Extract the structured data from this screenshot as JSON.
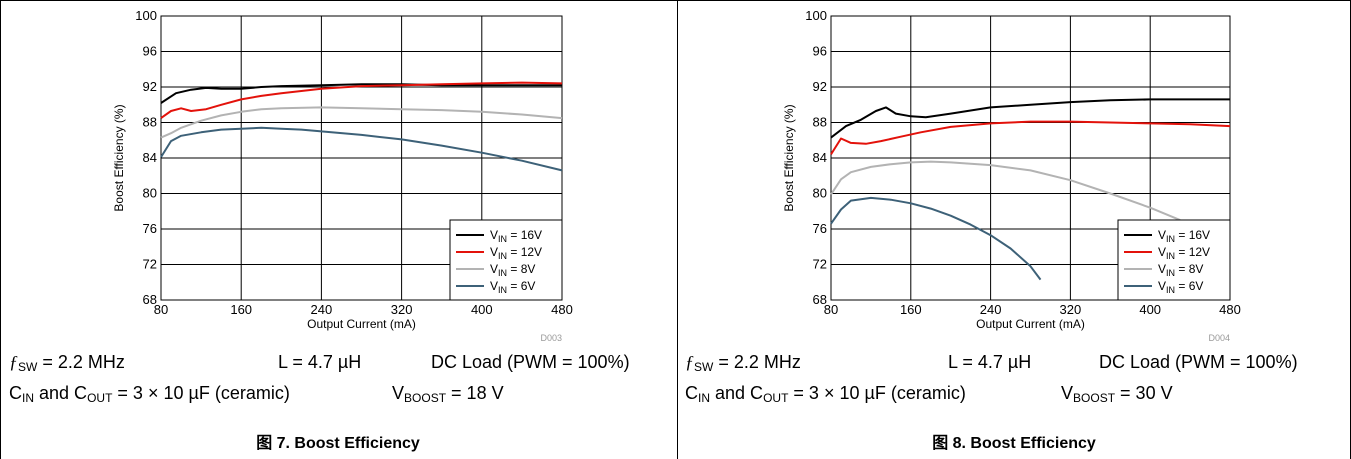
{
  "panels": [
    {
      "caption": "图 7. Boost Efficiency",
      "fsw_label": "= 2.2 MHz",
      "inductor": "L = 4.7 µH",
      "load": "DC Load (PWM = 100%)",
      "caps": "and C",
      "caps_tail": "= 3 × 10 µF (ceramic)",
      "vboost_value": "= 18 V",
      "chart_data": {
        "type": "line",
        "xlabel": "Output Current (mA)",
        "ylabel": "Boost Efficiency (%)",
        "xlim": [
          80,
          480
        ],
        "ylim": [
          68,
          100
        ],
        "xticks": [
          80,
          160,
          240,
          320,
          400,
          480
        ],
        "yticks": [
          68,
          72,
          76,
          80,
          84,
          88,
          92,
          96,
          100
        ],
        "grid": true,
        "legend_position": "bottom-right",
        "figure_id": "D003",
        "series": [
          {
            "name": "V_IN = 16V",
            "color": "#000000",
            "x": [
              80,
              95,
              110,
              125,
              140,
              160,
              180,
              200,
              240,
              280,
              320,
              360,
              400,
              440,
              480
            ],
            "y": [
              90.2,
              91.3,
              91.7,
              91.9,
              91.8,
              91.8,
              92.0,
              92.1,
              92.2,
              92.3,
              92.3,
              92.2,
              92.2,
              92.2,
              92.2
            ]
          },
          {
            "name": "V_IN = 12V",
            "color": "#e3120b",
            "x": [
              80,
              90,
              100,
              110,
              125,
              140,
              160,
              180,
              200,
              240,
              280,
              320,
              360,
              400,
              440,
              480
            ],
            "y": [
              88.5,
              89.3,
              89.6,
              89.3,
              89.5,
              90.0,
              90.6,
              91.0,
              91.3,
              91.8,
              92.1,
              92.2,
              92.3,
              92.4,
              92.5,
              92.4
            ]
          },
          {
            "name": "V_IN = 8V",
            "color": "#b3b3b3",
            "x": [
              80,
              90,
              100,
              120,
              140,
              160,
              180,
              200,
              240,
              280,
              320,
              360,
              400,
              440,
              480
            ],
            "y": [
              86.3,
              86.8,
              87.4,
              88.2,
              88.8,
              89.2,
              89.5,
              89.6,
              89.7,
              89.6,
              89.5,
              89.4,
              89.2,
              88.9,
              88.5
            ]
          },
          {
            "name": "V_IN = 6V",
            "color": "#3d6178",
            "x": [
              80,
              90,
              100,
              120,
              140,
              160,
              180,
              200,
              220,
              240,
              280,
              320,
              360,
              400,
              440,
              480
            ],
            "y": [
              84.1,
              85.9,
              86.5,
              86.9,
              87.2,
              87.3,
              87.4,
              87.3,
              87.2,
              87.0,
              86.6,
              86.1,
              85.4,
              84.6,
              83.7,
              82.6
            ]
          }
        ]
      }
    },
    {
      "caption": "图 8. Boost Efficiency",
      "fsw_label": "= 2.2 MHz",
      "inductor": "L = 4.7 µH",
      "load": "DC Load (PWM = 100%)",
      "caps": "and C",
      "caps_tail": "= 3 × 10 µF (ceramic)",
      "vboost_value": "= 30 V",
      "chart_data": {
        "type": "line",
        "xlabel": "Output Current (mA)",
        "ylabel": "Boost Efficiency (%)",
        "xlim": [
          80,
          480
        ],
        "ylim": [
          68,
          100
        ],
        "xticks": [
          80,
          160,
          240,
          320,
          400,
          480
        ],
        "yticks": [
          68,
          72,
          76,
          80,
          84,
          88,
          92,
          96,
          100
        ],
        "grid": true,
        "legend_position": "bottom-right",
        "figure_id": "D004",
        "series": [
          {
            "name": "V_IN = 16V",
            "color": "#000000",
            "x": [
              80,
              95,
              110,
              125,
              135,
              145,
              160,
              175,
              200,
              240,
              280,
              320,
              360,
              400,
              440,
              480
            ],
            "y": [
              86.3,
              87.6,
              88.3,
              89.3,
              89.7,
              89.0,
              88.7,
              88.6,
              89.0,
              89.7,
              90.0,
              90.3,
              90.5,
              90.6,
              90.6,
              90.6
            ]
          },
          {
            "name": "V_IN = 12V",
            "color": "#e3120b",
            "x": [
              80,
              90,
              100,
              115,
              130,
              150,
              170,
              200,
              240,
              280,
              320,
              360,
              400,
              440,
              480
            ],
            "y": [
              84.4,
              86.2,
              85.7,
              85.6,
              85.9,
              86.4,
              86.9,
              87.5,
              87.9,
              88.1,
              88.1,
              88.0,
              87.9,
              87.8,
              87.6
            ]
          },
          {
            "name": "V_IN = 8V",
            "color": "#b3b3b3",
            "x": [
              80,
              90,
              100,
              120,
              140,
              160,
              180,
              200,
              240,
              280,
              320,
              360,
              400,
              430
            ],
            "y": [
              79.9,
              81.6,
              82.4,
              83.0,
              83.3,
              83.5,
              83.6,
              83.5,
              83.2,
              82.6,
              81.5,
              80.0,
              78.4,
              77.0
            ]
          },
          {
            "name": "V_IN = 6V",
            "color": "#3d6178",
            "x": [
              80,
              90,
              100,
              120,
              140,
              160,
              180,
              200,
              220,
              240,
              260,
              280,
              290
            ],
            "y": [
              76.6,
              78.2,
              79.2,
              79.5,
              79.3,
              78.9,
              78.3,
              77.5,
              76.5,
              75.3,
              73.8,
              71.8,
              70.3
            ]
          }
        ]
      }
    }
  ]
}
